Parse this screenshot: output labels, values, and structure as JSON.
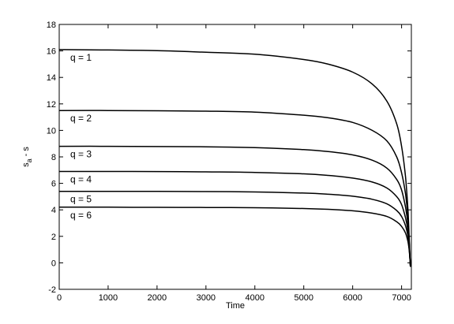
{
  "chart_data": {
    "type": "line",
    "title": "",
    "xlabel": "Time",
    "ylabel": "s_a - s",
    "xlim": [
      0,
      7200
    ],
    "ylim": [
      -2,
      18
    ],
    "xticks": [
      0,
      1000,
      2000,
      3000,
      4000,
      5000,
      6000,
      7000
    ],
    "yticks": [
      -2,
      0,
      2,
      4,
      6,
      8,
      10,
      12,
      14,
      16,
      18
    ],
    "grid": false,
    "line_color": "#000000",
    "series": [
      {
        "name": "q = 1",
        "x": [
          0,
          1000,
          2000,
          3000,
          4000,
          5000,
          5500,
          6000,
          6400,
          6700,
          6900,
          7000,
          7080,
          7130,
          7160,
          7180
        ],
        "values": [
          16.1,
          16.07,
          16.02,
          15.9,
          15.75,
          15.35,
          15.0,
          14.4,
          13.5,
          12.2,
          10.5,
          8.8,
          6.5,
          4.0,
          1.5,
          -0.3
        ]
      },
      {
        "name": "q = 2",
        "x": [
          0,
          1000,
          2000,
          3000,
          4000,
          5000,
          5500,
          6000,
          6400,
          6700,
          6900,
          7000,
          7080,
          7130,
          7160,
          7180
        ],
        "values": [
          11.5,
          11.5,
          11.48,
          11.45,
          11.38,
          11.15,
          10.95,
          10.6,
          10.0,
          9.2,
          8.0,
          6.8,
          5.2,
          3.4,
          1.3,
          -0.3
        ]
      },
      {
        "name": "q = 3",
        "x": [
          0,
          1000,
          2000,
          3000,
          4000,
          5000,
          5500,
          6000,
          6400,
          6700,
          6900,
          7000,
          7080,
          7130,
          7160,
          7180
        ],
        "values": [
          8.8,
          8.8,
          8.78,
          8.76,
          8.7,
          8.55,
          8.4,
          8.15,
          7.75,
          7.15,
          6.3,
          5.5,
          4.2,
          2.9,
          1.2,
          -0.3
        ]
      },
      {
        "name": "q = 4",
        "x": [
          0,
          1000,
          2000,
          3000,
          4000,
          5000,
          5500,
          6000,
          6400,
          6700,
          6900,
          7000,
          7080,
          7130,
          7160,
          7180
        ],
        "values": [
          6.9,
          6.9,
          6.89,
          6.87,
          6.83,
          6.72,
          6.6,
          6.4,
          6.1,
          5.65,
          5.0,
          4.4,
          3.4,
          2.4,
          1.0,
          -0.3
        ]
      },
      {
        "name": "q = 5",
        "x": [
          0,
          1000,
          2000,
          3000,
          4000,
          5000,
          5500,
          6000,
          6400,
          6700,
          6900,
          7000,
          7080,
          7130,
          7160,
          7180
        ],
        "values": [
          5.4,
          5.4,
          5.39,
          5.38,
          5.35,
          5.27,
          5.18,
          5.03,
          4.8,
          4.45,
          3.95,
          3.5,
          2.8,
          2.0,
          0.9,
          -0.3
        ]
      },
      {
        "name": "q = 6",
        "x": [
          0,
          1000,
          2000,
          3000,
          4000,
          5000,
          5500,
          6000,
          6400,
          6700,
          6900,
          7000,
          7080,
          7130,
          7160,
          7180
        ],
        "values": [
          4.2,
          4.2,
          4.19,
          4.18,
          4.16,
          4.1,
          4.04,
          3.93,
          3.75,
          3.5,
          3.1,
          2.75,
          2.25,
          1.6,
          0.8,
          -0.3
        ]
      }
    ]
  }
}
